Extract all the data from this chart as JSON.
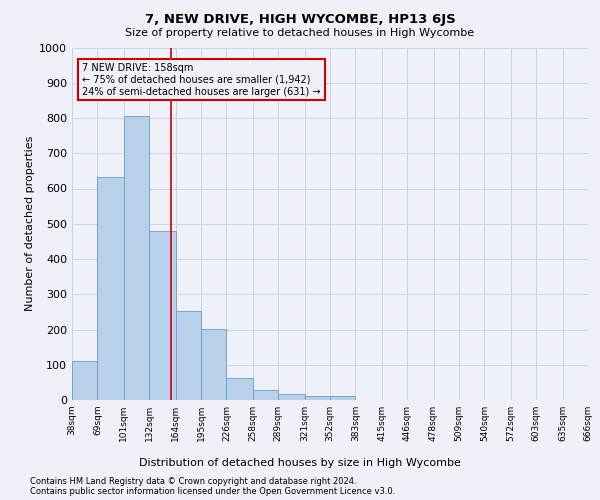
{
  "title": "7, NEW DRIVE, HIGH WYCOMBE, HP13 6JS",
  "subtitle": "Size of property relative to detached houses in High Wycombe",
  "xlabel": "Distribution of detached houses by size in High Wycombe",
  "ylabel": "Number of detached properties",
  "footnote1": "Contains HM Land Registry data © Crown copyright and database right 2024.",
  "footnote2": "Contains public sector information licensed under the Open Government Licence v3.0.",
  "annotation_title": "7 NEW DRIVE: 158sqm",
  "annotation_line1": "← 75% of detached houses are smaller (1,942)",
  "annotation_line2": "24% of semi-detached houses are larger (631) →",
  "bar_edges": [
    38,
    69,
    101,
    132,
    164,
    195,
    226,
    258,
    289,
    321,
    352,
    383,
    415,
    446,
    478,
    509,
    540,
    572,
    603,
    635,
    666
  ],
  "bar_heights": [
    110,
    632,
    805,
    480,
    252,
    202,
    62,
    28,
    18,
    12,
    12,
    0,
    0,
    0,
    0,
    0,
    0,
    0,
    0,
    0
  ],
  "property_size": 158,
  "bar_color": "#b8d0ea",
  "bar_edge_color": "#6a9fc8",
  "vline_color": "#cc0000",
  "annotation_box_color": "#cc0000",
  "grid_color": "#c8d4e8",
  "background_color": "#eef2f8",
  "ylim": [
    0,
    1000
  ],
  "yticks": [
    0,
    100,
    200,
    300,
    400,
    500,
    600,
    700,
    800,
    900,
    1000
  ]
}
